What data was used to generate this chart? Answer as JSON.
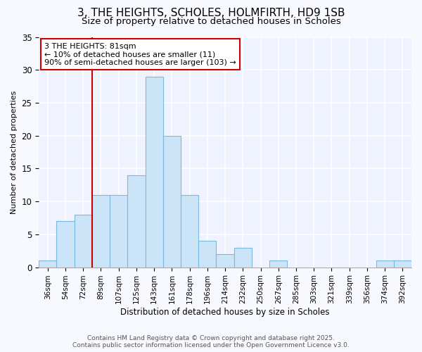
{
  "title_line1": "3, THE HEIGHTS, SCHOLES, HOLMFIRTH, HD9 1SB",
  "title_line2": "Size of property relative to detached houses in Scholes",
  "xlabel": "Distribution of detached houses by size in Scholes",
  "ylabel": "Number of detached properties",
  "bar_labels": [
    "36sqm",
    "54sqm",
    "72sqm",
    "89sqm",
    "107sqm",
    "125sqm",
    "143sqm",
    "161sqm",
    "178sqm",
    "196sqm",
    "214sqm",
    "232sqm",
    "250sqm",
    "267sqm",
    "285sqm",
    "303sqm",
    "321sqm",
    "339sqm",
    "356sqm",
    "374sqm",
    "392sqm"
  ],
  "bar_values": [
    1,
    7,
    8,
    11,
    11,
    14,
    29,
    20,
    11,
    4,
    2,
    3,
    0,
    1,
    0,
    0,
    0,
    0,
    0,
    1,
    1
  ],
  "bar_color": "#cce4f7",
  "bar_edge_color": "#7ab8e0",
  "annotation_text": "3 THE HEIGHTS: 81sqm\n← 10% of detached houses are smaller (11)\n90% of semi-detached houses are larger (103) →",
  "annotation_box_color": "white",
  "annotation_box_edge_color": "#cc0000",
  "vline_x": 3,
  "vline_color": "#cc0000",
  "ylim": [
    0,
    35
  ],
  "yticks": [
    0,
    5,
    10,
    15,
    20,
    25,
    30,
    35
  ],
  "background_color": "#f7f9ff",
  "plot_bg_color": "#eef3ff",
  "grid_color": "white",
  "footer_text": "Contains HM Land Registry data © Crown copyright and database right 2025.\nContains public sector information licensed under the Open Government Licence v3.0.",
  "title_fontsize": 11,
  "subtitle_fontsize": 9.5,
  "annotation_fontsize": 8,
  "label_fontsize": 8.5,
  "tick_fontsize": 7.5,
  "footer_fontsize": 6.5,
  "ylabel_fontsize": 8
}
